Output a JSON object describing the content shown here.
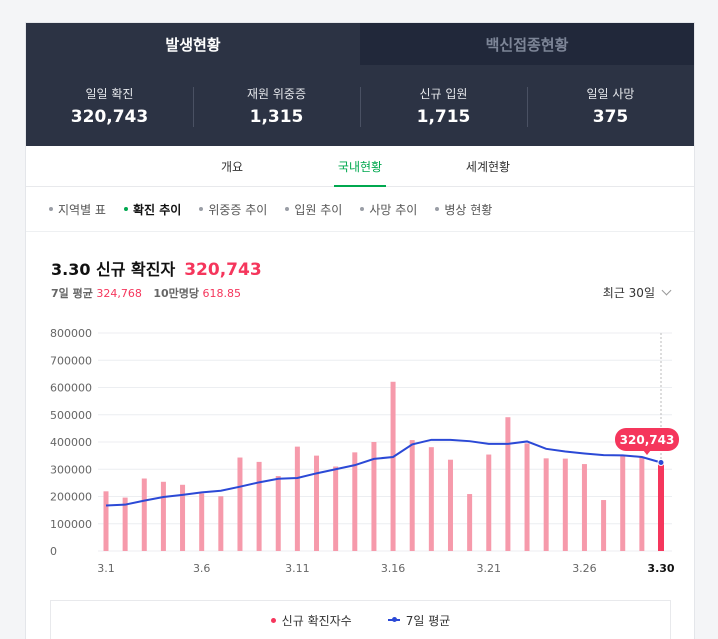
{
  "top_tabs": [
    {
      "label": "발생현황",
      "active": true
    },
    {
      "label": "백신접종현황",
      "active": false
    }
  ],
  "stats": [
    {
      "label": "일일 확진",
      "value": "320,743"
    },
    {
      "label": "재원 위중증",
      "value": "1,315"
    },
    {
      "label": "신규 입원",
      "value": "1,715"
    },
    {
      "label": "일일 사망",
      "value": "375"
    }
  ],
  "sub_tabs": [
    {
      "label": "개요",
      "active": false
    },
    {
      "label": "국내현황",
      "active": true
    },
    {
      "label": "세계현황",
      "active": false
    }
  ],
  "filters": [
    {
      "label": "지역별 표",
      "active": false
    },
    {
      "label": "확진 추이",
      "active": true
    },
    {
      "label": "위중증 추이",
      "active": false
    },
    {
      "label": "입원 추이",
      "active": false
    },
    {
      "label": "사망 추이",
      "active": false
    },
    {
      "label": "병상 현황",
      "active": false
    }
  ],
  "headline": {
    "title": "3.30 신규 확진자",
    "value": "320,743"
  },
  "subline": {
    "avg_label": "7일 평균",
    "avg_value": "324,768",
    "per_label": "10만명당",
    "per_value": "618.85"
  },
  "period": "최근 30일",
  "legend": {
    "bars": "신규 확진자수",
    "line": "7일 평균"
  },
  "colors": {
    "bar": "#f69aab",
    "bar_highlight": "#f5365c",
    "line": "#2b49d6",
    "accent": "#00a84f"
  },
  "chart_data": {
    "type": "bar",
    "categories": [
      "3.1",
      "3.2",
      "3.3",
      "3.4",
      "3.5",
      "3.6",
      "3.7",
      "3.8",
      "3.9",
      "3.10",
      "3.11",
      "3.12",
      "3.13",
      "3.14",
      "3.15",
      "3.16",
      "3.17",
      "3.18",
      "3.19",
      "3.20",
      "3.21",
      "3.22",
      "3.23",
      "3.24",
      "3.25",
      "3.26",
      "3.27",
      "3.28",
      "3.29",
      "3.30"
    ],
    "tick_labels": [
      "3.1",
      "3.6",
      "3.11",
      "3.16",
      "3.21",
      "3.26",
      "3.30"
    ],
    "ylim": [
      0,
      800000
    ],
    "yticks": [
      0,
      100000,
      200000,
      300000,
      400000,
      500000,
      600000,
      700000,
      800000
    ],
    "series": [
      {
        "name": "신규 확진자수",
        "type": "bar",
        "values": [
          219000,
          196000,
          266000,
          254000,
          243000,
          211000,
          201000,
          343000,
          327000,
          275000,
          383000,
          350000,
          310000,
          362000,
          400000,
          621000,
          407000,
          381000,
          335000,
          209000,
          354000,
          491000,
          395000,
          340000,
          339000,
          319000,
          187000,
          350000,
          347000,
          320743
        ]
      },
      {
        "name": "7일 평균",
        "type": "line",
        "values": [
          167000,
          170000,
          185000,
          198000,
          206000,
          215000,
          221000,
          236000,
          252000,
          265000,
          268000,
          285000,
          300000,
          315000,
          338000,
          345000,
          391000,
          408000,
          408000,
          403000,
          393000,
          393000,
          402000,
          375000,
          365000,
          358000,
          352000,
          351000,
          345000,
          324768
        ]
      }
    ],
    "highlight": {
      "index": 29,
      "label": "320,743"
    }
  }
}
